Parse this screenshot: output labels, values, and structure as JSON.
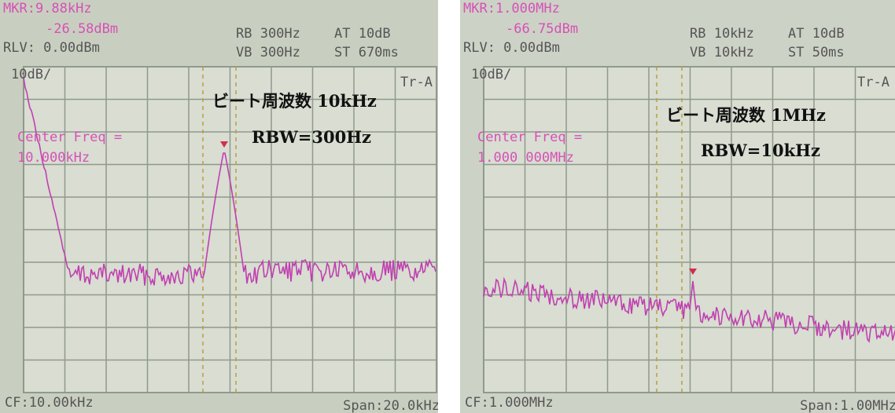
{
  "panels": [
    {
      "marker_freq": "MKR:9.88kHz",
      "marker_level": "-26.58dBm",
      "ref_level": "RLV: 0.00dBm",
      "rbw": "RB 300Hz",
      "vbw": "VB 300Hz",
      "atten": "AT 10dB",
      "sweep": "ST 670ms",
      "scale": "10dB/",
      "trace": "Tr-A",
      "center_label": "Center Freq =",
      "center_value": "10.000kHz",
      "cf": "CF:10.00kHz",
      "span": "Span:20.0kHz",
      "annotation_1": "ビート周波数 10kHz",
      "annotation_2": "RBW=300Hz"
    },
    {
      "marker_freq": "MKR:1.000MHz",
      "marker_level": "-66.75dBm",
      "ref_level": "RLV: 0.00dBm",
      "rbw": "RB 10kHz",
      "vbw": "VB 10kHz",
      "atten": "AT 10dB",
      "sweep": "ST 50ms",
      "scale": "10dB/",
      "trace": "Tr-A",
      "center_label": "Center Freq =",
      "center_value": "1.000 000MHz",
      "cf": "CF:1.000MHz",
      "span": "Span:1.00MHz",
      "annotation_1": "ビート周波数 1MHz",
      "annotation_2": "RBW=10kHz"
    }
  ]
}
